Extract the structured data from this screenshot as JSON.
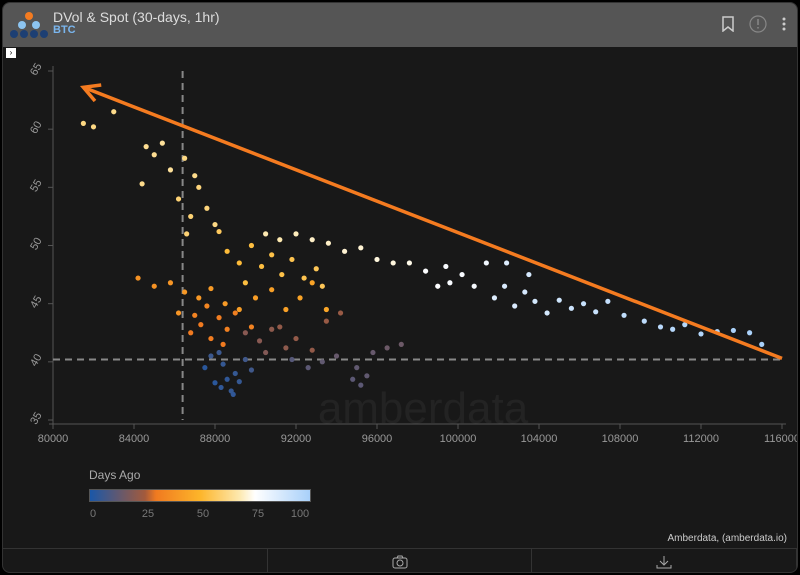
{
  "header": {
    "title": "DVol & Spot (30-days, 1hr)",
    "subtitle": "BTC"
  },
  "footer": {
    "credit": "Amberdata, (amberdata.io)"
  },
  "watermark": "amberdata",
  "colors": {
    "arrow": "#f47b20",
    "dashed": "#888888"
  },
  "chart_data": {
    "type": "scatter",
    "xlim": [
      80000,
      116000
    ],
    "ylim": [
      35,
      65
    ],
    "x_ticks": [
      80000,
      84000,
      88000,
      92000,
      96000,
      100000,
      104000,
      108000,
      112000,
      116000
    ],
    "y_ticks": [
      35,
      40,
      45,
      50,
      55,
      60,
      65
    ],
    "reference_lines": {
      "x": 86400,
      "y": 40.2
    },
    "arrow": {
      "from": [
        116000,
        40.3
      ],
      "to": [
        81500,
        63.6
      ]
    },
    "colorbar": {
      "title": "Days Ago",
      "ticks": [
        0,
        25,
        50,
        75,
        100
      ],
      "colors": [
        "#1a57a8",
        "#a35a3c",
        "#fdb52a",
        "#ffffff",
        "#a8d0fa"
      ]
    },
    "points": [
      [
        87500,
        39.5,
        3
      ],
      [
        88000,
        38.2,
        3
      ],
      [
        88300,
        37.8,
        4
      ],
      [
        88600,
        38.5,
        4
      ],
      [
        88800,
        37.5,
        5
      ],
      [
        89000,
        39,
        5
      ],
      [
        89200,
        38.3,
        5
      ],
      [
        87800,
        40.5,
        6
      ],
      [
        88200,
        40.8,
        6
      ],
      [
        89500,
        40.2,
        7
      ],
      [
        89800,
        39.3,
        7
      ],
      [
        88900,
        37.2,
        4
      ],
      [
        88400,
        39.8,
        5
      ],
      [
        94800,
        38.5,
        12
      ],
      [
        95200,
        38,
        12
      ],
      [
        95500,
        38.8,
        13
      ],
      [
        95000,
        39.5,
        13
      ],
      [
        94000,
        40.5,
        14
      ],
      [
        95800,
        40.8,
        14
      ],
      [
        96500,
        41.2,
        15
      ],
      [
        97200,
        41.5,
        15
      ],
      [
        93300,
        40,
        13
      ],
      [
        92600,
        39.5,
        12
      ],
      [
        91800,
        40.2,
        11
      ],
      [
        89500,
        42.5,
        20
      ],
      [
        90200,
        41.8,
        20
      ],
      [
        90800,
        42.8,
        21
      ],
      [
        91500,
        41.2,
        21
      ],
      [
        92000,
        42,
        22
      ],
      [
        92800,
        41,
        22
      ],
      [
        93500,
        43.5,
        23
      ],
      [
        94200,
        44.2,
        23
      ],
      [
        90500,
        40.8,
        19
      ],
      [
        91200,
        43,
        22
      ],
      [
        86800,
        42.5,
        30
      ],
      [
        87300,
        43.2,
        30
      ],
      [
        87800,
        42,
        31
      ],
      [
        88200,
        43.8,
        31
      ],
      [
        88600,
        42.8,
        32
      ],
      [
        89000,
        44.2,
        32
      ],
      [
        87000,
        44,
        33
      ],
      [
        88400,
        41.5,
        30
      ],
      [
        89800,
        43,
        33
      ],
      [
        87600,
        44.8,
        34
      ],
      [
        84200,
        47.2,
        38
      ],
      [
        85000,
        46.5,
        38
      ],
      [
        85800,
        46.8,
        39
      ],
      [
        86500,
        46,
        40
      ],
      [
        87200,
        45.5,
        40
      ],
      [
        87800,
        46.3,
        41
      ],
      [
        88500,
        45,
        41
      ],
      [
        89200,
        44.5,
        42
      ],
      [
        90000,
        45.5,
        42
      ],
      [
        90800,
        46.2,
        43
      ],
      [
        91500,
        44.5,
        43
      ],
      [
        92200,
        45.5,
        44
      ],
      [
        92800,
        46.8,
        44
      ],
      [
        93500,
        44.5,
        45
      ],
      [
        86200,
        44.2,
        39
      ],
      [
        88600,
        49.5,
        52
      ],
      [
        89200,
        48.5,
        52
      ],
      [
        89800,
        50,
        53
      ],
      [
        90300,
        48.2,
        53
      ],
      [
        90800,
        49.2,
        54
      ],
      [
        91300,
        47.5,
        54
      ],
      [
        91800,
        48.8,
        55
      ],
      [
        92400,
        47.2,
        55
      ],
      [
        93000,
        48,
        56
      ],
      [
        93300,
        46.5,
        56
      ],
      [
        89500,
        46.8,
        53
      ],
      [
        88200,
        51.2,
        57
      ],
      [
        86200,
        54,
        60
      ],
      [
        86800,
        52.5,
        60
      ],
      [
        87200,
        55,
        61
      ],
      [
        87600,
        53.2,
        61
      ],
      [
        88000,
        51.8,
        62
      ],
      [
        86500,
        57.5,
        62
      ],
      [
        87000,
        56,
        63
      ],
      [
        86600,
        51,
        60
      ],
      [
        84600,
        58.5,
        64
      ],
      [
        85000,
        57.8,
        64
      ],
      [
        85400,
        58.8,
        65
      ],
      [
        85800,
        56.5,
        65
      ],
      [
        84400,
        55.3,
        63
      ],
      [
        90500,
        51,
        68
      ],
      [
        91200,
        50.5,
        68
      ],
      [
        92000,
        51,
        69
      ],
      [
        92800,
        50.5,
        70
      ],
      [
        93600,
        50.2,
        70
      ],
      [
        94400,
        49.5,
        71
      ],
      [
        95200,
        49.8,
        71
      ],
      [
        96000,
        48.8,
        72
      ],
      [
        96800,
        48.5,
        72
      ],
      [
        97600,
        48.5,
        73
      ],
      [
        98400,
        47.8,
        76
      ],
      [
        99000,
        46.5,
        76
      ],
      [
        99600,
        46.8,
        77
      ],
      [
        100200,
        47.5,
        77
      ],
      [
        100800,
        46.5,
        78
      ],
      [
        101400,
        48.5,
        79
      ],
      [
        99400,
        48.2,
        77
      ],
      [
        101800,
        45.5,
        85
      ],
      [
        102300,
        46.5,
        86
      ],
      [
        102800,
        44.8,
        86
      ],
      [
        103300,
        46,
        87
      ],
      [
        103800,
        45.2,
        88
      ],
      [
        104400,
        44.2,
        88
      ],
      [
        105000,
        45.3,
        89
      ],
      [
        105600,
        44.6,
        90
      ],
      [
        106200,
        45,
        91
      ],
      [
        106800,
        44.3,
        91
      ],
      [
        107400,
        45.2,
        92
      ],
      [
        108200,
        44,
        93
      ],
      [
        109200,
        43.5,
        94
      ],
      [
        110000,
        43,
        95
      ],
      [
        110600,
        42.8,
        96
      ],
      [
        111200,
        43.2,
        96
      ],
      [
        112000,
        42.4,
        97
      ],
      [
        112800,
        42.6,
        98
      ],
      [
        113600,
        42.7,
        99
      ],
      [
        114400,
        42.5,
        99
      ],
      [
        115000,
        41.5,
        100
      ],
      [
        102400,
        48.5,
        85
      ],
      [
        103500,
        47.5,
        87
      ],
      [
        81500,
        60.5,
        62
      ],
      [
        82000,
        60.2,
        62
      ],
      [
        83000,
        61.5,
        63
      ]
    ]
  }
}
